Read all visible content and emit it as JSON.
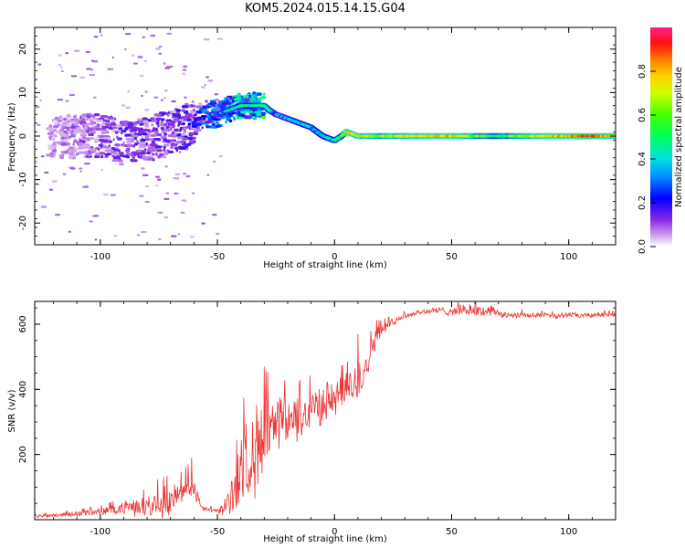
{
  "figure_title": "KOM5.2024.015.14.15.G04",
  "colorbar": {
    "label": "Normalized spectral amplitude",
    "ticks": [
      0.0,
      0.2,
      0.4,
      0.6,
      0.8
    ],
    "tick_labels": [
      "0.0",
      "0.2",
      "0.4",
      "0.6",
      "0.8"
    ],
    "range": [
      0,
      1
    ]
  },
  "chart_data": [
    {
      "type": "heatmap",
      "title": "",
      "xlabel": "Height of straight line (km)",
      "ylabel": "Frequency (Hz)",
      "xlim": [
        -128,
        120
      ],
      "ylim": [
        -25,
        25
      ],
      "xticks": [
        -100,
        -50,
        0,
        50,
        100
      ],
      "xtick_labels": [
        "-100",
        "-50",
        "0",
        "50",
        "100"
      ],
      "yticks": [
        -20,
        -10,
        0,
        10,
        20
      ],
      "ytick_labels": [
        "-20",
        "-10",
        "0",
        "10",
        "20"
      ],
      "colormap": "rainbow",
      "ridge": {
        "height_km": [
          -128,
          -110,
          -100,
          -90,
          -80,
          -70,
          -60,
          -55,
          -50,
          -45,
          -40,
          -35,
          -30,
          -28,
          -25,
          -20,
          -15,
          -10,
          -5,
          0,
          3,
          5,
          10,
          20,
          30,
          40,
          50,
          60,
          70,
          80,
          90,
          100,
          110,
          120
        ],
        "frequency_hz": [
          0,
          0,
          0,
          -1,
          -1,
          1,
          3,
          5,
          5,
          6,
          7,
          7,
          7,
          6,
          5,
          4,
          3,
          2,
          0,
          -1,
          0,
          1,
          0,
          0,
          0,
          0,
          0,
          0,
          0,
          0,
          0,
          0,
          0,
          0
        ],
        "amplitude": [
          0.05,
          0.1,
          0.12,
          0.15,
          0.15,
          0.15,
          0.18,
          0.3,
          0.3,
          0.4,
          0.45,
          0.45,
          0.5,
          0.45,
          0.3,
          0.35,
          0.4,
          0.35,
          0.4,
          0.45,
          0.5,
          0.75,
          0.7,
          0.65,
          0.7,
          0.75,
          0.8,
          0.6,
          0.5,
          0.65,
          0.75,
          0.8,
          0.9,
          0.7
        ]
      }
    },
    {
      "type": "line",
      "title": "",
      "xlabel": "Height of straight line (km)",
      "ylabel": "SNR (v/v)",
      "xlim": [
        -128,
        120
      ],
      "ylim": [
        0,
        670
      ],
      "xticks": [
        -100,
        -50,
        0,
        50,
        100
      ],
      "xtick_labels": [
        "-100",
        "-50",
        "0",
        "50",
        "100"
      ],
      "yticks": [
        200,
        400,
        600
      ],
      "ytick_labels": [
        "200",
        "400",
        "600"
      ],
      "series": [
        {
          "color": "#ee3333",
          "x": [
            -128,
            -120,
            -110,
            -100,
            -90,
            -80,
            -75,
            -70,
            -65,
            -62,
            -60,
            -57,
            -55,
            -50,
            -48,
            -45,
            -42,
            -40,
            -38,
            -35,
            -32,
            -30,
            -28,
            -25,
            -20,
            -15,
            -10,
            -5,
            0,
            5,
            10,
            13,
            15,
            18,
            20,
            25,
            30,
            35,
            40,
            45,
            50,
            55,
            60,
            65,
            68,
            70,
            75,
            80,
            85,
            90,
            95,
            100,
            105,
            110,
            115,
            120
          ],
          "y": [
            10,
            14,
            18,
            25,
            35,
            45,
            55,
            60,
            70,
            110,
            90,
            45,
            30,
            28,
            30,
            60,
            100,
            170,
            180,
            200,
            230,
            250,
            270,
            280,
            300,
            310,
            340,
            360,
            370,
            390,
            420,
            470,
            520,
            560,
            580,
            610,
            625,
            635,
            640,
            642,
            640,
            645,
            640,
            640,
            650,
            630,
            628,
            630,
            625,
            630,
            625,
            630,
            625,
            628,
            630,
            628
          ],
          "noise_amplitude": [
            6,
            8,
            10,
            14,
            25,
            40,
            55,
            60,
            60,
            50,
            35,
            15,
            10,
            10,
            20,
            50,
            100,
            140,
            160,
            150,
            160,
            160,
            140,
            110,
            100,
            90,
            80,
            75,
            70,
            70,
            80,
            90,
            70,
            40,
            25,
            15,
            12,
            12,
            12,
            14,
            18,
            20,
            22,
            22,
            20,
            12,
            12,
            12,
            10,
            10,
            10,
            10,
            10,
            10,
            10,
            10
          ],
          "spikes": [
            {
              "x": -61,
              "y": 190
            },
            {
              "x": -30,
              "y": 470
            },
            {
              "x": -35,
              "y": 300
            },
            {
              "x": -15,
              "y": 420
            },
            {
              "x": 5,
              "y": 450
            },
            {
              "x": 10,
              "y": 570
            }
          ]
        }
      ]
    }
  ]
}
